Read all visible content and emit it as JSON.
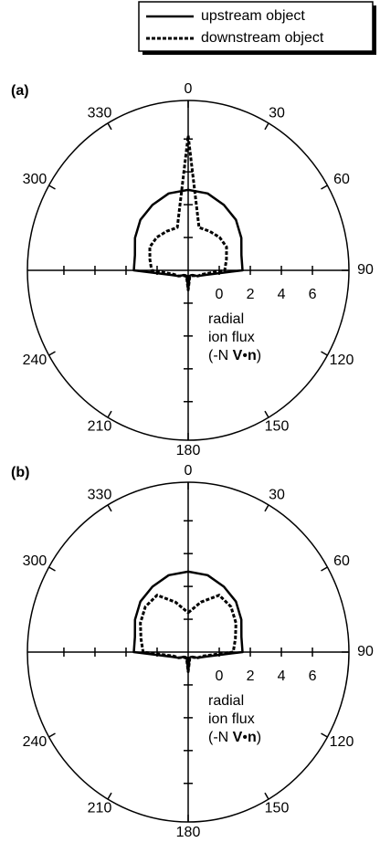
{
  "chart_data": [
    {
      "type": "polar",
      "panel_label": "(a)",
      "x": [
        0,
        15,
        30,
        45,
        60,
        75,
        90,
        105,
        120,
        135,
        150,
        165,
        180,
        195,
        210,
        225,
        240,
        255,
        270,
        285,
        300,
        315,
        330,
        345
      ],
      "series": [
        {
          "name": "upstream object",
          "color": "#000000",
          "dash": false,
          "values": [
            2.9,
            2.85,
            2.6,
            2.35,
            1.95,
            1.55,
            1.5,
            -0.9,
            -1.3,
            -1.6,
            -1.65,
            -1.65,
            -0.8,
            -1.65,
            -1.65,
            -1.6,
            -1.3,
            -0.9,
            1.5,
            1.55,
            1.95,
            2.35,
            2.6,
            2.85
          ]
        },
        {
          "name": "downstream object",
          "color": "#000000",
          "dash": true,
          "values": [
            6.2,
            0.7,
            0.75,
            0.85,
            0.85,
            0.55,
            0.35,
            -1.05,
            -1.3,
            -1.55,
            -1.6,
            -1.6,
            -0.8,
            -1.6,
            -1.6,
            -1.55,
            -1.3,
            -1.05,
            0.35,
            0.55,
            0.85,
            0.85,
            0.75,
            0.7
          ]
        }
      ],
      "rlim": [
        -2,
        8.35
      ],
      "rticks": [
        0,
        2,
        4,
        6
      ],
      "angle_labels": [
        0,
        30,
        60,
        90,
        120,
        150,
        180,
        210,
        240,
        300,
        330
      ],
      "radial_label_lines": [
        "radial",
        "ion flux"
      ],
      "radial_label_formula": [
        {
          "text": "(-N ",
          "bold": false
        },
        {
          "text": "V",
          "bold": true
        },
        {
          "text": "•",
          "bold": false
        },
        {
          "text": "n",
          "bold": true
        },
        {
          "text": ")",
          "bold": false
        }
      ]
    },
    {
      "type": "polar",
      "panel_label": "(b)",
      "x": [
        0,
        15,
        30,
        45,
        60,
        75,
        90,
        105,
        120,
        135,
        150,
        165,
        180,
        195,
        210,
        225,
        240,
        255,
        270,
        285,
        300,
        315,
        330,
        345
      ],
      "series": [
        {
          "name": "upstream object",
          "color": "#000000",
          "dash": false,
          "values": [
            2.9,
            2.85,
            2.6,
            2.35,
            1.95,
            1.55,
            1.5,
            -0.9,
            -1.3,
            -1.6,
            -1.65,
            -1.65,
            -0.8,
            -1.65,
            -1.65,
            -1.6,
            -1.3,
            -0.9,
            1.5,
            1.55,
            1.95,
            2.35,
            2.6,
            2.85
          ]
        },
        {
          "name": "downstream object",
          "color": "#000000",
          "dash": true,
          "values": [
            0.4,
            1.15,
            2.0,
            1.9,
            1.55,
            1.15,
            0.9,
            -1.05,
            -1.3,
            -1.55,
            -1.6,
            -1.6,
            -0.8,
            -1.6,
            -1.6,
            -1.55,
            -1.3,
            -1.05,
            0.9,
            1.15,
            1.55,
            1.9,
            2.0,
            1.15
          ]
        }
      ],
      "rlim": [
        -2,
        8.35
      ],
      "rticks": [
        0,
        2,
        4,
        6
      ],
      "angle_labels": [
        0,
        30,
        60,
        90,
        120,
        150,
        180,
        210,
        240,
        300,
        330
      ],
      "radial_label_lines": [
        "radial",
        "ion flux"
      ],
      "radial_label_formula": [
        {
          "text": "(-N ",
          "bold": false
        },
        {
          "text": "V",
          "bold": true
        },
        {
          "text": "•",
          "bold": false
        },
        {
          "text": "n",
          "bold": true
        },
        {
          "text": ")",
          "bold": false
        }
      ]
    }
  ]
}
